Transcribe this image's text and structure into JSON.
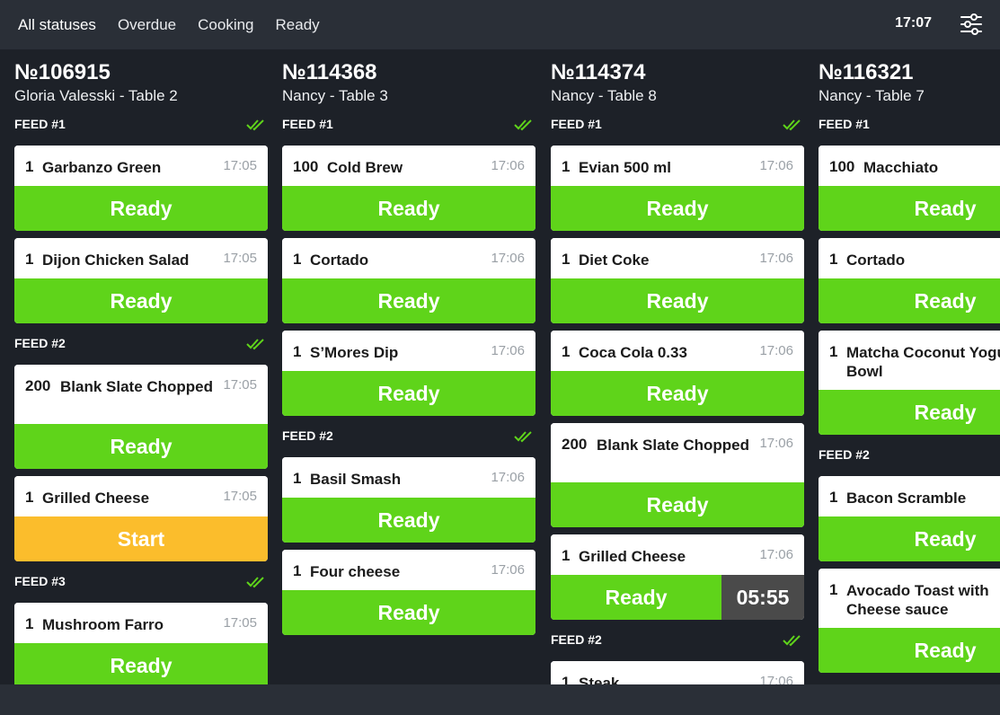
{
  "header": {
    "tabs": [
      {
        "label": "All statuses"
      },
      {
        "label": "Overdue"
      },
      {
        "label": "Cooking"
      },
      {
        "label": "Ready"
      }
    ],
    "active_tab": "All statuses",
    "time": "17:07",
    "filter_icon": "sliders-icon"
  },
  "colors": {
    "ready": "#5fd41a",
    "start": "#fbbd2c",
    "timer": "#4a4a4a",
    "feed_check": "#5fd41a",
    "background": "#1d2128"
  },
  "orders": [
    {
      "number": "№106915",
      "subtitle": "Gloria Valesski - Table 2",
      "feeds": [
        {
          "label": "FEED #1",
          "items": [
            {
              "qty": "1",
              "name": "Garbanzo Green",
              "time": "17:05",
              "action": "Ready"
            },
            {
              "qty": "1",
              "name": "Dijon Chicken Salad",
              "time": "17:05",
              "action": "Ready"
            }
          ]
        },
        {
          "label": "FEED #2",
          "items": [
            {
              "qty": "200",
              "name": "Blank Slate Chopped",
              "time": "17:05",
              "action": "Ready"
            },
            {
              "qty": "1",
              "name": "Grilled Cheese",
              "time": "17:05",
              "action": "Start"
            }
          ]
        },
        {
          "label": "FEED #3",
          "items": [
            {
              "qty": "1",
              "name": "Mushroom Farro",
              "time": "17:05",
              "action": "Ready"
            }
          ]
        }
      ]
    },
    {
      "number": "№114368",
      "subtitle": "Nancy - Table 3",
      "feeds": [
        {
          "label": "FEED #1",
          "items": [
            {
              "qty": "100",
              "name": "Cold Brew",
              "time": "17:06",
              "action": "Ready"
            },
            {
              "qty": "1",
              "name": "Cortado",
              "time": "17:06",
              "action": "Ready"
            },
            {
              "qty": "1",
              "name": "S’Mores Dip",
              "time": "17:06",
              "action": "Ready"
            }
          ]
        },
        {
          "label": "FEED #2",
          "items": [
            {
              "qty": "1",
              "name": "Basil Smash",
              "time": "17:06",
              "action": "Ready"
            },
            {
              "qty": "1",
              "name": "Four cheese",
              "time": "17:06",
              "action": "Ready"
            }
          ]
        }
      ]
    },
    {
      "number": "№114374",
      "subtitle": "Nancy - Table 8",
      "feeds": [
        {
          "label": "FEED #1",
          "items": [
            {
              "qty": "1",
              "name": "Evian 500 ml",
              "time": "17:06",
              "action": "Ready"
            },
            {
              "qty": "1",
              "name": "Diet Coke",
              "time": "17:06",
              "action": "Ready"
            },
            {
              "qty": "1",
              "name": "Coca Cola 0.33",
              "time": "17:06",
              "action": "Ready"
            },
            {
              "qty": "200",
              "name": "Blank Slate Chopped",
              "time": "17:06",
              "action": "Ready"
            },
            {
              "qty": "1",
              "name": "Grilled Cheese",
              "time": "17:06",
              "action": "Ready",
              "timer": "05:55"
            }
          ]
        },
        {
          "label": "FEED #2",
          "items": [
            {
              "qty": "1",
              "name": "Steak",
              "time": "17:06",
              "action": ""
            }
          ]
        }
      ]
    },
    {
      "number": "№116321",
      "subtitle": "Nancy - Table 7",
      "feeds": [
        {
          "label": "FEED #1",
          "items": [
            {
              "qty": "100",
              "name": "Macchiato",
              "time": "",
              "action": "Ready"
            },
            {
              "qty": "1",
              "name": "Cortado",
              "time": "",
              "action": "Ready"
            },
            {
              "qty": "1",
              "name": "Matcha Coconut Yogurt Bowl",
              "time": "",
              "action": "Ready"
            }
          ]
        },
        {
          "label": "FEED #2",
          "items": [
            {
              "qty": "1",
              "name": "Bacon Scramble",
              "time": "",
              "action": "Ready"
            },
            {
              "qty": "1",
              "name": "Avocado Toast with Cheese sauce",
              "time": "",
              "action": "Ready"
            }
          ]
        }
      ]
    }
  ]
}
